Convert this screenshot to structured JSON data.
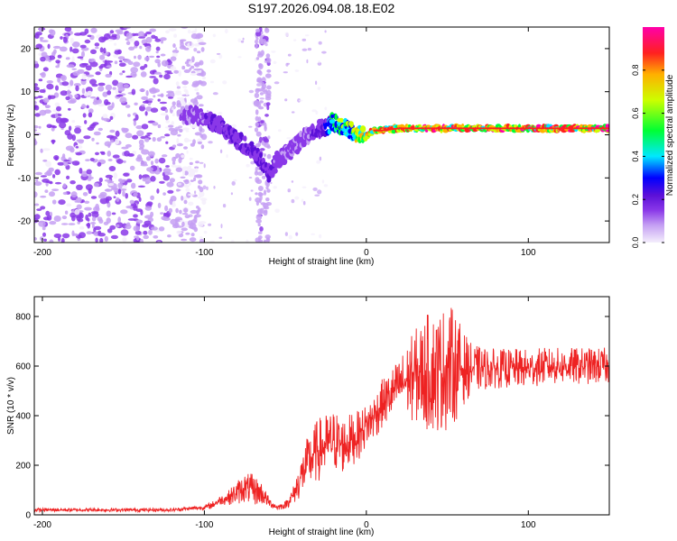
{
  "title": "S197.2026.094.08.18.E02",
  "colors": {
    "snr_line": "#ee2222",
    "frame": "#000000"
  },
  "chart_data": [
    {
      "type": "heatmap",
      "name": "spectrogram",
      "xlabel": "Height of straight line (km)",
      "ylabel": "Frequency (Hz)",
      "xlim": [
        -205,
        150
      ],
      "ylim": [
        -25,
        25
      ],
      "xticks": [
        -200,
        -100,
        0,
        100
      ],
      "yticks": [
        -20,
        -10,
        0,
        10,
        20
      ],
      "colorbar": {
        "label": "Normalized spectral amplitude",
        "range": [
          0,
          1
        ],
        "ticks": [
          "0.0",
          "0.2",
          "0.4",
          "0.6",
          "0.8"
        ],
        "tick_values": [
          0,
          0.2,
          0.4,
          0.6,
          0.8
        ],
        "colormap": [
          "#f4eefc",
          "#c5a0f3",
          "#8a38e8",
          "#5b10d8",
          "#0000ff",
          "#00e8ff",
          "#00ff33",
          "#ccff00",
          "#ffb000",
          "#ff2020",
          "#ff00aa"
        ]
      },
      "noise_region": {
        "x_range": [
          -205,
          -120
        ],
        "freq_range": [
          -25,
          25
        ]
      },
      "vertical_streak": {
        "x_range": [
          -68,
          -60
        ],
        "freq_range": [
          -25,
          25
        ]
      },
      "signal_track": {
        "x": [
          -115,
          -100,
          -90,
          -80,
          -72,
          -65,
          -60,
          -55,
          -48,
          -42,
          -36,
          -30,
          -25,
          -20,
          -15,
          -10,
          -5,
          0,
          5,
          10,
          20,
          30,
          40,
          60,
          80,
          100,
          120,
          150
        ],
        "freq": [
          5,
          4,
          2,
          -1,
          -3,
          -6,
          -9,
          -6,
          -4,
          -2,
          0,
          1,
          2,
          3,
          2,
          1,
          0,
          0,
          1,
          1,
          1.5,
          1.5,
          1.5,
          1.5,
          1.5,
          1.5,
          1.5,
          1.5
        ],
        "amplitude": [
          0.2,
          0.25,
          0.3,
          0.3,
          0.3,
          0.3,
          0.3,
          0.25,
          0.2,
          0.2,
          0.2,
          0.3,
          0.4,
          0.6,
          0.7,
          0.75,
          0.8,
          0.85,
          0.9,
          0.9,
          0.9,
          0.9,
          0.95,
          0.95,
          0.95,
          0.95,
          0.95,
          0.95
        ]
      }
    },
    {
      "type": "line",
      "name": "snr",
      "xlabel": "Height of straight line (km)",
      "ylabel": "SNR (10 * v/v)",
      "xlim": [
        -205,
        150
      ],
      "ylim": [
        0,
        880
      ],
      "xticks": [
        -200,
        -100,
        0,
        100
      ],
      "yticks": [
        0,
        200,
        400,
        600,
        800
      ],
      "series": [
        {
          "name": "SNR",
          "x": [
            -205,
            -150,
            -120,
            -110,
            -100,
            -95,
            -90,
            -85,
            -80,
            -75,
            -70,
            -65,
            -60,
            -55,
            -50,
            -45,
            -40,
            -35,
            -30,
            -25,
            -20,
            -15,
            -10,
            -5,
            0,
            5,
            10,
            15,
            20,
            25,
            30,
            35,
            40,
            45,
            50,
            55,
            60,
            65,
            70,
            80,
            90,
            100,
            110,
            120,
            130,
            140,
            150
          ],
          "values": [
            20,
            20,
            20,
            25,
            30,
            40,
            60,
            70,
            90,
            110,
            100,
            90,
            50,
            30,
            40,
            80,
            160,
            220,
            260,
            280,
            300,
            280,
            300,
            320,
            360,
            400,
            450,
            480,
            520,
            540,
            560,
            570,
            580,
            580,
            600,
            600,
            590,
            590,
            590,
            590,
            590,
            590,
            600,
            600,
            600,
            600,
            600
          ],
          "peak_to_peak": [
            15,
            15,
            15,
            15,
            20,
            30,
            40,
            60,
            100,
            120,
            130,
            100,
            40,
            25,
            30,
            80,
            180,
            240,
            260,
            260,
            260,
            240,
            220,
            200,
            180,
            200,
            200,
            220,
            220,
            300,
            380,
            450,
            500,
            500,
            520,
            450,
            300,
            200,
            180,
            160,
            160,
            160,
            150,
            150,
            150,
            150,
            150
          ]
        }
      ]
    }
  ]
}
